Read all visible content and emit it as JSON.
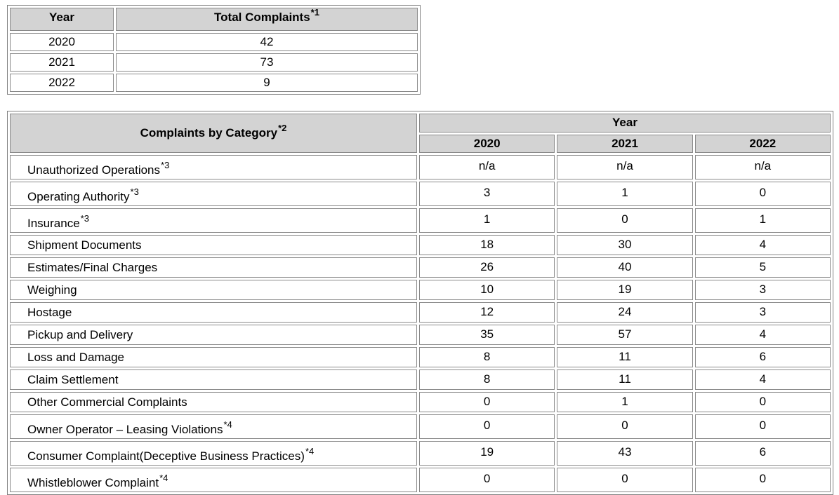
{
  "totals_table": {
    "header_year": "Year",
    "header_total": "Total Complaints",
    "header_total_note": "*1",
    "rows": [
      {
        "year": "2020",
        "total": "42"
      },
      {
        "year": "2021",
        "total": "73"
      },
      {
        "year": "2022",
        "total": "9"
      }
    ]
  },
  "category_table": {
    "header_category": "Complaints by Category",
    "header_category_note": "*2",
    "header_year": "Year",
    "years": [
      "2020",
      "2021",
      "2022"
    ],
    "rows": [
      {
        "category": "Unauthorized Operations",
        "note": "*3",
        "values": [
          "n/a",
          "n/a",
          "n/a"
        ]
      },
      {
        "category": "Operating Authority",
        "note": "*3",
        "values": [
          "3",
          "1",
          "0"
        ]
      },
      {
        "category": "Insurance",
        "note": "*3",
        "values": [
          "1",
          "0",
          "1"
        ]
      },
      {
        "category": "Shipment Documents",
        "note": "",
        "values": [
          "18",
          "30",
          "4"
        ]
      },
      {
        "category": "Estimates/Final Charges",
        "note": "",
        "values": [
          "26",
          "40",
          "5"
        ]
      },
      {
        "category": "Weighing",
        "note": "",
        "values": [
          "10",
          "19",
          "3"
        ]
      },
      {
        "category": "Hostage",
        "note": "",
        "values": [
          "12",
          "24",
          "3"
        ]
      },
      {
        "category": "Pickup and Delivery",
        "note": "",
        "values": [
          "35",
          "57",
          "4"
        ]
      },
      {
        "category": "Loss and Damage",
        "note": "",
        "values": [
          "8",
          "11",
          "6"
        ]
      },
      {
        "category": "Claim Settlement",
        "note": "",
        "values": [
          "8",
          "11",
          "4"
        ]
      },
      {
        "category": "Other Commercial Complaints",
        "note": "",
        "values": [
          "0",
          "1",
          "0"
        ]
      },
      {
        "category": "Owner Operator – Leasing Violations",
        "note": "*4",
        "values": [
          "0",
          "0",
          "0"
        ]
      },
      {
        "category": "Consumer Complaint(Deceptive Business Practices)",
        "note": "*4",
        "values": [
          "19",
          "43",
          "6"
        ]
      },
      {
        "category": "Whistleblower Complaint",
        "note": "*4",
        "values": [
          "0",
          "0",
          "0"
        ]
      }
    ]
  }
}
